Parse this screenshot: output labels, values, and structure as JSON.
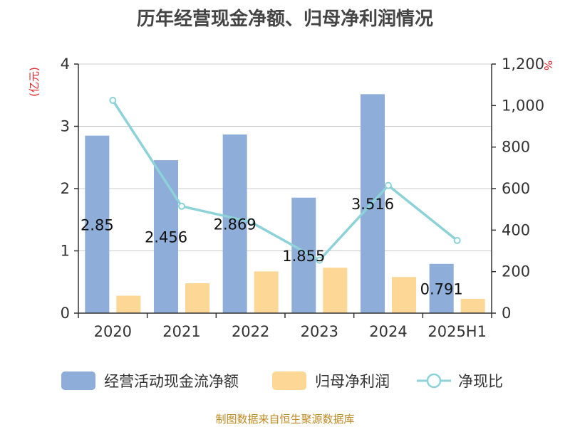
{
  "colors": {
    "bar_cashflow": "#8eadd9",
    "bar_profit": "#fcd796",
    "line_ratio": "#8cd2d8",
    "unit_text": "#e0242a",
    "footer_text": "#c08a22",
    "grid": "#cccccc",
    "axis": "#333333"
  },
  "footer": {
    "source": "制图数据来自恒生聚源数据库"
  },
  "chart_data": {
    "type": "bar",
    "title": "历年经营现金净额、归母净利润情况",
    "categories": [
      "2020",
      "2021",
      "2022",
      "2023",
      "2024",
      "2025H1"
    ],
    "series": [
      {
        "name": "经营活动现金流净额",
        "type": "bar",
        "axis": "left",
        "values": [
          2.85,
          2.456,
          2.869,
          1.855,
          3.516,
          0.791
        ],
        "labels": [
          "2.85",
          "2.456",
          "2.869",
          "1.855",
          "3.516",
          "0.791"
        ]
      },
      {
        "name": "归母净利润",
        "type": "bar",
        "axis": "left",
        "values": [
          0.28,
          0.48,
          0.67,
          0.73,
          0.58,
          0.23
        ]
      },
      {
        "name": "净现比",
        "type": "line",
        "axis": "right",
        "values": [
          1025,
          515,
          440,
          255,
          615,
          350
        ]
      }
    ],
    "y_left": {
      "unit": "(亿元)",
      "ylim": [
        0,
        4
      ],
      "ticks": [
        "0",
        "1",
        "2",
        "3",
        "4"
      ]
    },
    "y_right": {
      "unit": "%",
      "ylim": [
        0,
        1200
      ],
      "ticks": [
        "0",
        "200",
        "400",
        "600",
        "800",
        "1,000",
        "1,200"
      ]
    },
    "grid": true,
    "legend_position": "bottom"
  }
}
